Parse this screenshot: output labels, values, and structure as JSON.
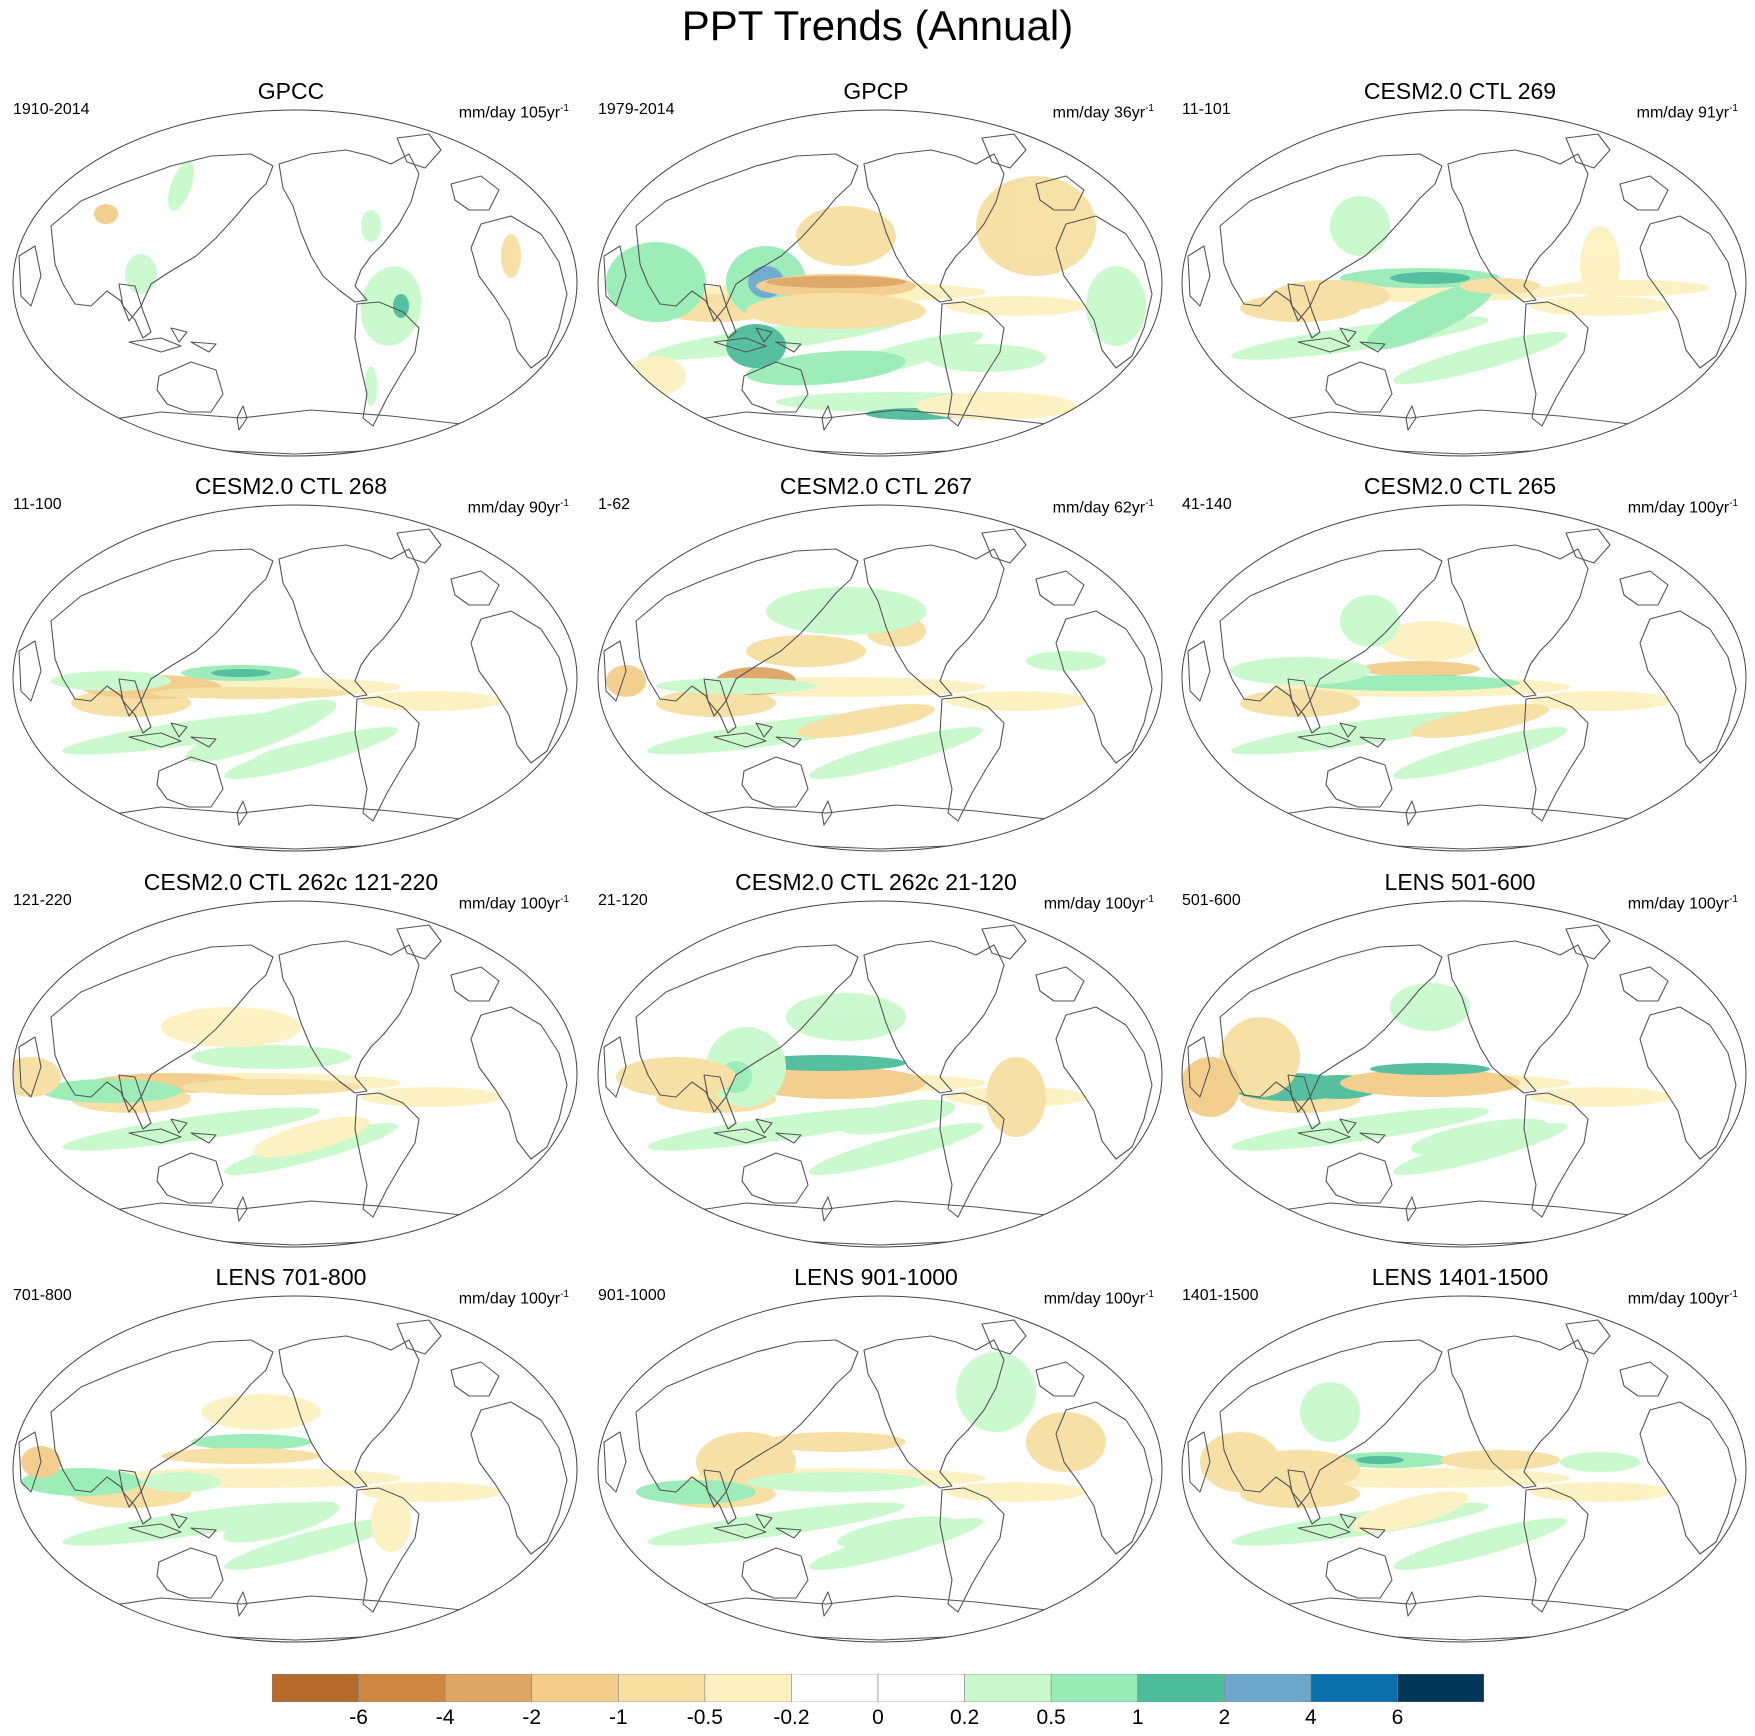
{
  "figure": {
    "title": "PPT Trends (Annual)"
  },
  "panels": [
    {
      "title": "GPCC",
      "period": "1910-2014",
      "units": "mm/day 105yr",
      "units_sup": "-1"
    },
    {
      "title": "GPCP",
      "period": "1979-2014",
      "units": "mm/day 36yr",
      "units_sup": "-1"
    },
    {
      "title": "CESM2.0 CTL 269",
      "period": "11-101",
      "units": "mm/day 91yr",
      "units_sup": "-1"
    },
    {
      "title": "CESM2.0 CTL 268",
      "period": "11-100",
      "units": "mm/day 90yr",
      "units_sup": "-1"
    },
    {
      "title": "CESM2.0 CTL 267",
      "period": "1-62",
      "units": "mm/day 62yr",
      "units_sup": "-1"
    },
    {
      "title": "CESM2.0 CTL 265",
      "period": "41-140",
      "units": "mm/day 100yr",
      "units_sup": "-1"
    },
    {
      "title": "CESM2.0 CTL 262c 121-220",
      "period": "121-220",
      "units": "mm/day 100yr",
      "units_sup": "-1"
    },
    {
      "title": "CESM2.0 CTL 262c 21-120",
      "period": "21-120",
      "units": "mm/day 100yr",
      "units_sup": "-1"
    },
    {
      "title": "LENS 501-600",
      "period": "501-600",
      "units": "mm/day 100yr",
      "units_sup": "-1"
    },
    {
      "title": "LENS 701-800",
      "period": "701-800",
      "units": "mm/day 100yr",
      "units_sup": "-1"
    },
    {
      "title": "LENS 901-1000",
      "period": "901-1000",
      "units": "mm/day 100yr",
      "units_sup": "-1"
    },
    {
      "title": "LENS 1401-1500",
      "period": "1401-1500",
      "units": "mm/day 100yr",
      "units_sup": "-1"
    }
  ],
  "colorbar": {
    "colors": [
      "#b5692a",
      "#cf8641",
      "#dea564",
      "#f3cd8a",
      "#f6dfa1",
      "#fcf1c0",
      "#ffffff",
      "#ffffff",
      "#c9f9cc",
      "#98ecb6",
      "#4dbc9a",
      "#6ba8cc",
      "#0b6fab",
      "#003658"
    ],
    "labels": [
      "-6",
      "-4",
      "-2",
      "-1",
      "-0.5",
      "-0.2",
      "0",
      "0.2",
      "0.5",
      "1",
      "2",
      "4",
      "6"
    ]
  }
}
